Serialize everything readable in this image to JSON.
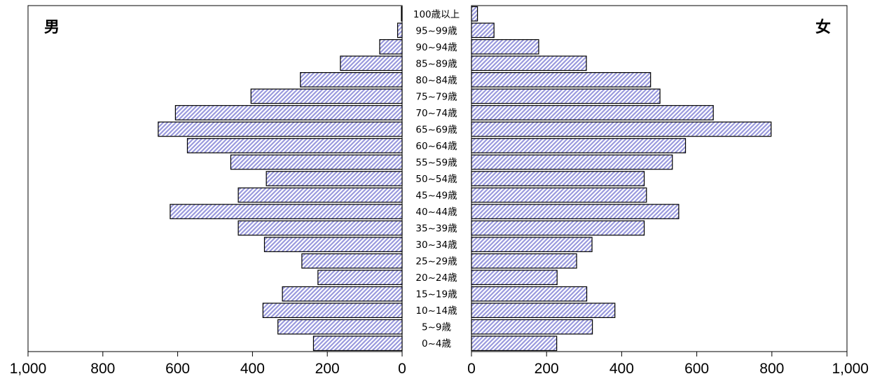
{
  "chart_data": {
    "type": "bar",
    "orientation": "horizontal",
    "layout": "population-pyramid",
    "categories": [
      "0~4歳",
      "5~9歳",
      "10~14歳",
      "15~19歳",
      "20~24歳",
      "25~29歳",
      "30~34歳",
      "35~39歳",
      "40~44歳",
      "45~49歳",
      "50~54歳",
      "55~59歳",
      "60~64歳",
      "65~69歳",
      "70~74歳",
      "75~79歳",
      "80~84歳",
      "85~89歳",
      "90~94歳",
      "95~99歳",
      "100歳以上"
    ],
    "series": [
      {
        "name": "男",
        "color": "#9999dd",
        "values": [
          237,
          332,
          372,
          320,
          225,
          268,
          368,
          438,
          620,
          438,
          363,
          458,
          574,
          652,
          606,
          404,
          272,
          165,
          60,
          12,
          2
        ]
      },
      {
        "name": "女",
        "color": "#9999dd",
        "values": [
          227,
          322,
          382,
          307,
          228,
          280,
          321,
          460,
          552,
          466,
          460,
          535,
          570,
          798,
          644,
          502,
          477,
          306,
          179,
          60,
          16
        ]
      }
    ],
    "left_label": "男",
    "right_label": "女",
    "xlim": [
      0,
      1000
    ],
    "left_ticks": [
      "1,000",
      "800",
      "600",
      "400",
      "200",
      "0"
    ],
    "right_ticks": [
      "0",
      "200",
      "400",
      "600",
      "800",
      "1,000"
    ],
    "bar_fill": "diagonal-hatch",
    "hatch_color": "#9999dd",
    "grid": false,
    "title": "",
    "xlabel": "",
    "ylabel": ""
  }
}
